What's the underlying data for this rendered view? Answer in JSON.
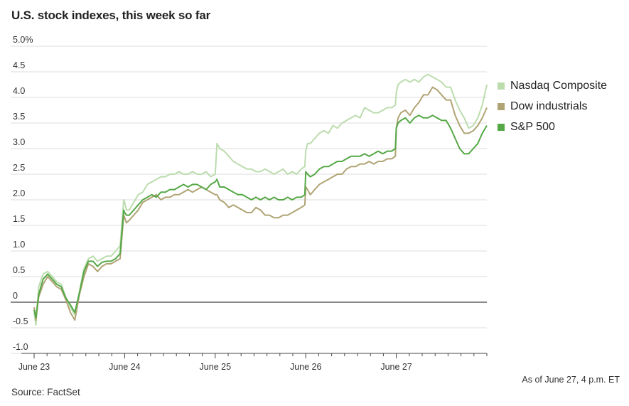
{
  "chart_data": {
    "type": "line",
    "title": "U.S. stock indexes, this week so far",
    "ylim": [
      -1.0,
      5.0
    ],
    "y_ticks": [
      {
        "value": 5.0,
        "label": "5.0%"
      },
      {
        "value": 4.5,
        "label": "4.5"
      },
      {
        "value": 4.0,
        "label": "4.0"
      },
      {
        "value": 3.5,
        "label": "3.5"
      },
      {
        "value": 3.0,
        "label": "3.0"
      },
      {
        "value": 2.5,
        "label": "2.5"
      },
      {
        "value": 2.0,
        "label": "2.0"
      },
      {
        "value": 1.5,
        "label": "1.5"
      },
      {
        "value": 1.0,
        "label": "1.0"
      },
      {
        "value": 0.5,
        "label": "0.5"
      },
      {
        "value": 0,
        "label": "0"
      },
      {
        "value": -0.5,
        "label": "-0.5"
      },
      {
        "value": -1.0,
        "label": "-1.0"
      }
    ],
    "x_labels": [
      "June 23",
      "June 24",
      "June 25",
      "June 26",
      "June 27"
    ],
    "x_domain": [
      0,
      5
    ],
    "series": [
      {
        "name": "Nasdaq Composite",
        "color": "#bcdcae",
        "x": [
          0,
          0.02,
          0.05,
          0.1,
          0.15,
          0.2,
          0.25,
          0.3,
          0.35,
          0.4,
          0.45,
          0.5,
          0.55,
          0.6,
          0.65,
          0.7,
          0.75,
          0.8,
          0.85,
          0.9,
          0.95,
          0.99,
          1.0,
          1.02,
          1.05,
          1.1,
          1.15,
          1.2,
          1.25,
          1.3,
          1.35,
          1.4,
          1.45,
          1.5,
          1.55,
          1.6,
          1.65,
          1.7,
          1.75,
          1.8,
          1.85,
          1.9,
          1.95,
          2.0,
          2.02,
          2.05,
          2.1,
          2.15,
          2.2,
          2.25,
          2.3,
          2.35,
          2.4,
          2.45,
          2.5,
          2.55,
          2.6,
          2.65,
          2.7,
          2.75,
          2.8,
          2.85,
          2.9,
          2.95,
          2.99,
          3.0,
          3.02,
          3.05,
          3.1,
          3.15,
          3.2,
          3.25,
          3.3,
          3.35,
          3.4,
          3.45,
          3.5,
          3.55,
          3.6,
          3.65,
          3.7,
          3.75,
          3.8,
          3.85,
          3.9,
          3.95,
          3.99,
          4.0,
          4.02,
          4.05,
          4.1,
          4.15,
          4.2,
          4.25,
          4.3,
          4.35,
          4.4,
          4.45,
          4.5,
          4.55,
          4.6,
          4.65,
          4.7,
          4.75,
          4.8,
          4.85,
          4.9,
          4.95,
          5.0
        ],
        "values": [
          -0.2,
          -0.45,
          0.3,
          0.55,
          0.6,
          0.5,
          0.4,
          0.35,
          0.1,
          -0.1,
          -0.25,
          0.2,
          0.65,
          0.85,
          0.9,
          0.8,
          0.85,
          0.9,
          0.9,
          1.0,
          1.1,
          2.0,
          1.95,
          1.8,
          1.8,
          1.95,
          2.1,
          2.15,
          2.3,
          2.35,
          2.4,
          2.45,
          2.45,
          2.5,
          2.5,
          2.55,
          2.5,
          2.5,
          2.55,
          2.5,
          2.5,
          2.55,
          2.45,
          2.5,
          3.1,
          3.0,
          2.95,
          2.85,
          2.75,
          2.7,
          2.65,
          2.6,
          2.6,
          2.55,
          2.55,
          2.6,
          2.55,
          2.5,
          2.55,
          2.6,
          2.5,
          2.55,
          2.5,
          2.6,
          2.65,
          2.95,
          3.1,
          3.1,
          3.2,
          3.3,
          3.35,
          3.3,
          3.45,
          3.4,
          3.5,
          3.55,
          3.6,
          3.65,
          3.6,
          3.8,
          3.75,
          3.7,
          3.7,
          3.75,
          3.8,
          3.8,
          3.85,
          4.1,
          4.25,
          4.3,
          4.35,
          4.3,
          4.35,
          4.3,
          4.4,
          4.45,
          4.4,
          4.35,
          4.3,
          4.2,
          4.2,
          3.95,
          3.75,
          3.6,
          3.4,
          3.45,
          3.6,
          3.85,
          4.25
        ]
      },
      {
        "name": "Dow industrials",
        "color": "#b0a374",
        "x": [
          0,
          0.02,
          0.05,
          0.1,
          0.15,
          0.2,
          0.25,
          0.3,
          0.35,
          0.4,
          0.45,
          0.5,
          0.55,
          0.6,
          0.65,
          0.7,
          0.75,
          0.8,
          0.85,
          0.9,
          0.95,
          0.99,
          1.0,
          1.02,
          1.05,
          1.1,
          1.15,
          1.2,
          1.25,
          1.3,
          1.35,
          1.4,
          1.45,
          1.5,
          1.55,
          1.6,
          1.65,
          1.7,
          1.75,
          1.8,
          1.85,
          1.9,
          1.95,
          2.0,
          2.02,
          2.05,
          2.1,
          2.15,
          2.2,
          2.25,
          2.3,
          2.35,
          2.4,
          2.45,
          2.5,
          2.55,
          2.6,
          2.65,
          2.7,
          2.75,
          2.8,
          2.85,
          2.9,
          2.95,
          2.99,
          3.0,
          3.02,
          3.05,
          3.1,
          3.15,
          3.2,
          3.25,
          3.3,
          3.35,
          3.4,
          3.45,
          3.5,
          3.55,
          3.6,
          3.65,
          3.7,
          3.75,
          3.8,
          3.85,
          3.9,
          3.95,
          3.99,
          4.0,
          4.02,
          4.05,
          4.1,
          4.15,
          4.2,
          4.25,
          4.3,
          4.35,
          4.4,
          4.45,
          4.5,
          4.55,
          4.6,
          4.65,
          4.7,
          4.75,
          4.8,
          4.85,
          4.9,
          4.95,
          5.0
        ],
        "values": [
          -0.1,
          -0.35,
          0.1,
          0.35,
          0.5,
          0.4,
          0.3,
          0.25,
          0.05,
          -0.2,
          -0.35,
          0.15,
          0.5,
          0.75,
          0.7,
          0.6,
          0.7,
          0.75,
          0.75,
          0.8,
          0.85,
          1.7,
          1.65,
          1.55,
          1.6,
          1.7,
          1.8,
          1.95,
          2.0,
          2.05,
          2.1,
          2.0,
          2.05,
          2.05,
          2.1,
          2.1,
          2.15,
          2.2,
          2.15,
          2.2,
          2.25,
          2.2,
          2.15,
          2.1,
          2.1,
          2.0,
          1.95,
          1.85,
          1.9,
          1.85,
          1.8,
          1.75,
          1.75,
          1.85,
          1.8,
          1.7,
          1.7,
          1.65,
          1.65,
          1.7,
          1.7,
          1.75,
          1.8,
          1.85,
          1.9,
          2.25,
          2.2,
          2.1,
          2.2,
          2.3,
          2.35,
          2.4,
          2.45,
          2.5,
          2.5,
          2.6,
          2.65,
          2.65,
          2.7,
          2.7,
          2.75,
          2.7,
          2.75,
          2.75,
          2.8,
          2.8,
          2.85,
          3.4,
          3.6,
          3.7,
          3.75,
          3.65,
          3.8,
          3.9,
          4.05,
          4.05,
          4.2,
          4.15,
          4.05,
          3.95,
          3.95,
          3.65,
          3.45,
          3.3,
          3.3,
          3.35,
          3.45,
          3.6,
          3.8
        ]
      },
      {
        "name": "S&P 500",
        "color": "#55a846",
        "x": [
          0,
          0.02,
          0.05,
          0.1,
          0.15,
          0.2,
          0.25,
          0.3,
          0.35,
          0.4,
          0.45,
          0.5,
          0.55,
          0.6,
          0.65,
          0.7,
          0.75,
          0.8,
          0.85,
          0.9,
          0.95,
          0.99,
          1.0,
          1.02,
          1.05,
          1.1,
          1.15,
          1.2,
          1.25,
          1.3,
          1.35,
          1.4,
          1.45,
          1.5,
          1.55,
          1.6,
          1.65,
          1.7,
          1.75,
          1.8,
          1.85,
          1.9,
          1.95,
          2.0,
          2.02,
          2.05,
          2.1,
          2.15,
          2.2,
          2.25,
          2.3,
          2.35,
          2.4,
          2.45,
          2.5,
          2.55,
          2.6,
          2.65,
          2.7,
          2.75,
          2.8,
          2.85,
          2.9,
          2.95,
          2.99,
          3.0,
          3.02,
          3.05,
          3.1,
          3.15,
          3.2,
          3.25,
          3.3,
          3.35,
          3.4,
          3.45,
          3.5,
          3.55,
          3.6,
          3.65,
          3.7,
          3.75,
          3.8,
          3.85,
          3.9,
          3.95,
          3.99,
          4.0,
          4.02,
          4.05,
          4.1,
          4.15,
          4.2,
          4.25,
          4.3,
          4.35,
          4.4,
          4.45,
          4.5,
          4.55,
          4.6,
          4.65,
          4.7,
          4.75,
          4.8,
          4.85,
          4.9,
          4.95,
          5.0
        ],
        "values": [
          -0.15,
          -0.3,
          0.15,
          0.45,
          0.55,
          0.45,
          0.35,
          0.3,
          0.08,
          -0.05,
          -0.2,
          0.18,
          0.6,
          0.8,
          0.8,
          0.7,
          0.78,
          0.8,
          0.8,
          0.85,
          0.95,
          1.8,
          1.75,
          1.7,
          1.7,
          1.8,
          1.9,
          2.0,
          2.05,
          2.1,
          2.05,
          2.15,
          2.15,
          2.2,
          2.2,
          2.25,
          2.3,
          2.25,
          2.3,
          2.3,
          2.25,
          2.2,
          2.3,
          2.35,
          2.4,
          2.25,
          2.25,
          2.2,
          2.15,
          2.1,
          2.1,
          2.05,
          2.0,
          2.05,
          2.0,
          2.05,
          2.0,
          2.05,
          2.0,
          2.0,
          2.05,
          2.0,
          2.05,
          2.05,
          2.1,
          2.55,
          2.5,
          2.45,
          2.5,
          2.6,
          2.65,
          2.65,
          2.7,
          2.75,
          2.75,
          2.8,
          2.85,
          2.85,
          2.85,
          2.9,
          2.85,
          2.9,
          2.95,
          2.9,
          2.95,
          2.95,
          3.0,
          3.4,
          3.5,
          3.55,
          3.6,
          3.5,
          3.6,
          3.65,
          3.6,
          3.6,
          3.65,
          3.6,
          3.55,
          3.55,
          3.4,
          3.2,
          3.0,
          2.9,
          2.9,
          3.0,
          3.1,
          3.3,
          3.45
        ]
      }
    ]
  },
  "footnote": "As of June 27, 4 p.m. ET",
  "source": "Source: FactSet"
}
